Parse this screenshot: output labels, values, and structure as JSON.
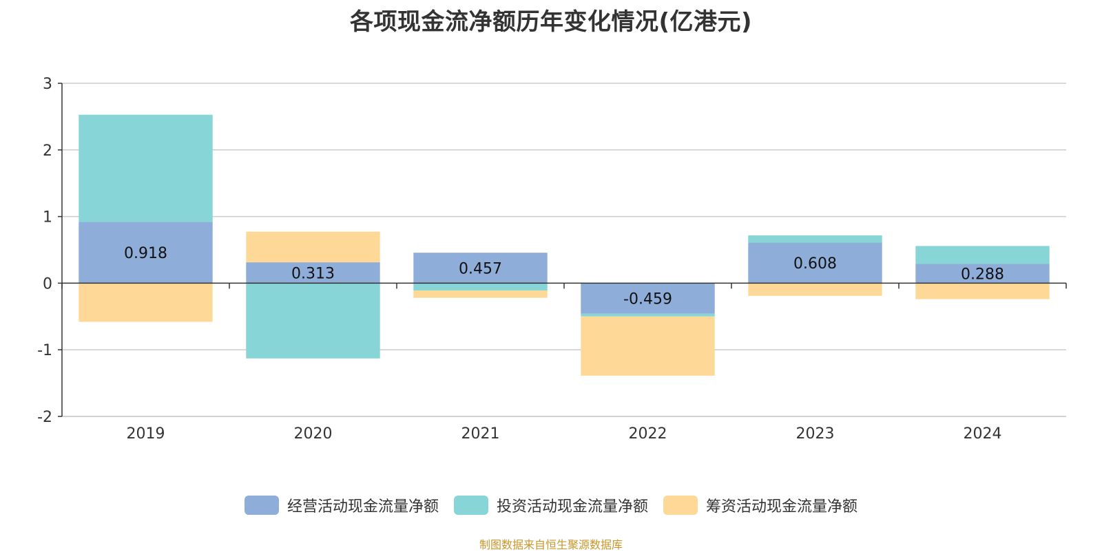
{
  "chart_data": {
    "type": "bar",
    "stacked": true,
    "title": "各项现金流净额历年变化情况(亿港元)",
    "categories": [
      "2019",
      "2020",
      "2021",
      "2022",
      "2023",
      "2024"
    ],
    "series": [
      {
        "name": "经营活动现金流量净额",
        "color": "#8fadd9",
        "values": [
          0.918,
          0.313,
          0.457,
          -0.459,
          0.608,
          0.288
        ],
        "labels": [
          "0.918",
          "0.313",
          "0.457",
          "-0.459",
          "0.608",
          "0.288"
        ]
      },
      {
        "name": "投资活动现金流量净额",
        "color": "#87d5d7",
        "values": [
          1.61,
          -1.13,
          -0.11,
          -0.04,
          0.11,
          0.27
        ]
      },
      {
        "name": "筹资活动现金流量净额",
        "color": "#fed897",
        "values": [
          -0.58,
          0.46,
          -0.11,
          -0.89,
          -0.19,
          -0.24
        ]
      }
    ],
    "yticks": [
      "3",
      "2",
      "1",
      "0",
      "-1",
      "-2"
    ],
    "ylim": [
      -2,
      3
    ],
    "grid": true,
    "legend": "bottom-center"
  },
  "source_note": "制图数据来自恒生聚源数据库"
}
